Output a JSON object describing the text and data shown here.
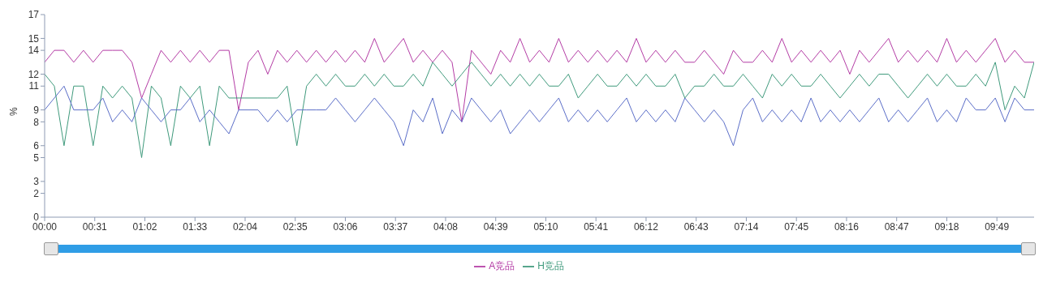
{
  "chart_data": {
    "type": "line",
    "ylabel": "%",
    "x": [
      0,
      6,
      12,
      18,
      24,
      30,
      36,
      42,
      48,
      54,
      60,
      66,
      72,
      78,
      84,
      90,
      96,
      102,
      108,
      114,
      120,
      126,
      132,
      138,
      144,
      150,
      156,
      162,
      168,
      174,
      180,
      186,
      192,
      198,
      204,
      210,
      216,
      222,
      228,
      234,
      240,
      246,
      252,
      258,
      264,
      270,
      276,
      282,
      288,
      294,
      300,
      306,
      312,
      318,
      324,
      330,
      336,
      342,
      348,
      354,
      360,
      366,
      372,
      378,
      384,
      390,
      396,
      402,
      408,
      414,
      420,
      426,
      432,
      438,
      444,
      450,
      456,
      462,
      468,
      474,
      480,
      486,
      492,
      498,
      504,
      510,
      516,
      522,
      528,
      534,
      540,
      546,
      552,
      558,
      564,
      570,
      576,
      582,
      588,
      594,
      600,
      606,
      612
    ],
    "series": [
      {
        "name": "A竞品",
        "color": "#b43ca5",
        "values": [
          13,
          14,
          14,
          13,
          14,
          13,
          14,
          14,
          14,
          13,
          10,
          12,
          14,
          13,
          14,
          13,
          14,
          13,
          14,
          14,
          9,
          13,
          14,
          12,
          14,
          13,
          14,
          13,
          14,
          13,
          14,
          13,
          14,
          13,
          15,
          13,
          14,
          15,
          13,
          14,
          13,
          14,
          13,
          8,
          14,
          13,
          12,
          14,
          13,
          15,
          13,
          14,
          13,
          15,
          13,
          14,
          13,
          14,
          13,
          14,
          13,
          15,
          13,
          14,
          13,
          14,
          13,
          13,
          14,
          13,
          12,
          14,
          13,
          13,
          14,
          13,
          15,
          13,
          14,
          13,
          14,
          13,
          14,
          12,
          14,
          13,
          14,
          15,
          13,
          14,
          13,
          14,
          13,
          15,
          13,
          14,
          13,
          14,
          15,
          13,
          14,
          13,
          13
        ]
      },
      {
        "name": "H竞品",
        "color": "#3f9a7c",
        "values": [
          12,
          11,
          6,
          11,
          11,
          6,
          11,
          10,
          11,
          10,
          5,
          11,
          10,
          6,
          11,
          10,
          11,
          6,
          11,
          10,
          10,
          10,
          10,
          10,
          10,
          11,
          6,
          11,
          12,
          11,
          12,
          11,
          11,
          12,
          11,
          12,
          11,
          11,
          12,
          11,
          13,
          12,
          11,
          12,
          13,
          12,
          11,
          12,
          11,
          12,
          11,
          12,
          11,
          11,
          12,
          10,
          11,
          12,
          11,
          11,
          12,
          11,
          12,
          11,
          11,
          12,
          10,
          11,
          11,
          12,
          11,
          11,
          12,
          11,
          10,
          12,
          11,
          12,
          11,
          11,
          12,
          11,
          10,
          11,
          12,
          11,
          12,
          12,
          11,
          10,
          11,
          12,
          11,
          12,
          11,
          11,
          12,
          11,
          13,
          9,
          11,
          10,
          13
        ]
      },
      {
        "color": "#5b6ec8",
        "values": [
          9,
          10,
          11,
          9,
          9,
          9,
          10,
          8,
          9,
          8,
          10,
          9,
          8,
          9,
          9,
          10,
          8,
          9,
          8,
          7,
          9,
          9,
          9,
          8,
          9,
          8,
          9,
          9,
          9,
          9,
          10,
          9,
          8,
          9,
          10,
          9,
          8,
          6,
          9,
          8,
          10,
          7,
          9,
          8,
          10,
          9,
          8,
          9,
          7,
          8,
          9,
          8,
          9,
          10,
          8,
          9,
          8,
          9,
          8,
          9,
          10,
          8,
          9,
          8,
          9,
          8,
          10,
          9,
          8,
          9,
          8,
          6,
          9,
          10,
          8,
          9,
          8,
          9,
          8,
          10,
          8,
          9,
          8,
          9,
          8,
          9,
          10,
          8,
          9,
          8,
          9,
          10,
          8,
          9,
          8,
          10,
          9,
          9,
          10,
          8,
          10,
          9,
          9
        ]
      }
    ],
    "xlim": [
      0,
      612
    ],
    "xticks": [
      {
        "value": 0,
        "label": "00:00"
      },
      {
        "value": 31,
        "label": "00:31"
      },
      {
        "value": 62,
        "label": "01:02"
      },
      {
        "value": 93,
        "label": "01:33"
      },
      {
        "value": 124,
        "label": "02:04"
      },
      {
        "value": 155,
        "label": "02:35"
      },
      {
        "value": 186,
        "label": "03:06"
      },
      {
        "value": 217,
        "label": "03:37"
      },
      {
        "value": 248,
        "label": "04:08"
      },
      {
        "value": 279,
        "label": "04:39"
      },
      {
        "value": 310,
        "label": "05:10"
      },
      {
        "value": 341,
        "label": "05:41"
      },
      {
        "value": 372,
        "label": "06:12"
      },
      {
        "value": 403,
        "label": "06:43"
      },
      {
        "value": 434,
        "label": "07:14"
      },
      {
        "value": 465,
        "label": "07:45"
      },
      {
        "value": 496,
        "label": "08:16"
      },
      {
        "value": 527,
        "label": "08:47"
      },
      {
        "value": 558,
        "label": "09:18"
      },
      {
        "value": 589,
        "label": "09:49"
      }
    ],
    "ylim": [
      0,
      17
    ],
    "yticks": [
      0,
      2,
      3,
      5,
      6,
      8,
      9,
      11,
      12,
      14,
      15,
      17
    ],
    "legend": "bottom",
    "marker": "none"
  }
}
